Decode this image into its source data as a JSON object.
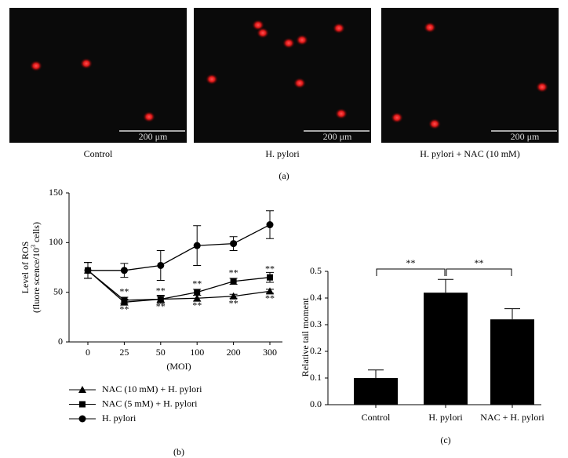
{
  "figure_a": {
    "label": "(a)",
    "panels": [
      {
        "caption": "Control",
        "scale_bar": "200 μm"
      },
      {
        "caption": "H. pylori",
        "scale_bar": "200 μm"
      },
      {
        "caption": "H. pylori + NAC (10 mM)",
        "scale_bar": "200 μm"
      }
    ]
  },
  "chart_data": [
    {
      "type": "line",
      "panel_label": "(b)",
      "xlabel": "(MOI)",
      "ylabel": {
        "line1": "Level of ROS",
        "line2_start": "(fluore scence/10",
        "line2_sup": "3",
        "line2_end": " cells)"
      },
      "categories": [
        "0",
        "25",
        "50",
        "100",
        "200",
        "300"
      ],
      "ylim": [
        0,
        150
      ],
      "yticks": [
        0,
        50,
        100,
        150
      ],
      "series": [
        {
          "name": "NAC (10 mM) + H. pylori",
          "color": "#000000",
          "marker": "triangle",
          "values": [
            72,
            40,
            43,
            44,
            46,
            51
          ],
          "errors": [
            8,
            3,
            3,
            3,
            2,
            2
          ],
          "annotations": [
            null,
            "**",
            "**",
            "**",
            "**",
            "**"
          ],
          "annotation_position": "below"
        },
        {
          "name": "NAC (5 mM) + H. pylori",
          "color": "#000000",
          "marker": "square",
          "values": [
            72,
            42,
            43,
            50,
            61,
            65
          ],
          "errors": [
            8,
            3,
            4,
            3,
            3,
            5
          ],
          "annotations": [
            null,
            "**",
            "**",
            "**",
            "**",
            "**"
          ],
          "annotation_position": "above"
        },
        {
          "name": "H. pylori",
          "color": "#000000",
          "marker": "circle",
          "values": [
            72,
            72,
            77,
            97,
            99,
            118
          ],
          "errors": [
            8,
            7,
            15,
            20,
            7,
            14
          ],
          "annotations": [
            null,
            null,
            null,
            null,
            null,
            null
          ],
          "annotation_position": "above"
        }
      ]
    },
    {
      "type": "bar",
      "panel_label": "(c)",
      "ylabel": "Relative tail moment",
      "categories": [
        "Control",
        "H. pylori",
        "NAC + H. pylori"
      ],
      "values": [
        0.1,
        0.42,
        0.32
      ],
      "errors": [
        0.03,
        0.05,
        0.04
      ],
      "color": "#000000",
      "ylim": [
        0,
        0.5
      ],
      "yticks": [
        {
          "value": 0,
          "label": "0.0"
        },
        0.1,
        0.2,
        0.3,
        0.4,
        0.5
      ],
      "significance": [
        "**",
        "**"
      ]
    }
  ]
}
